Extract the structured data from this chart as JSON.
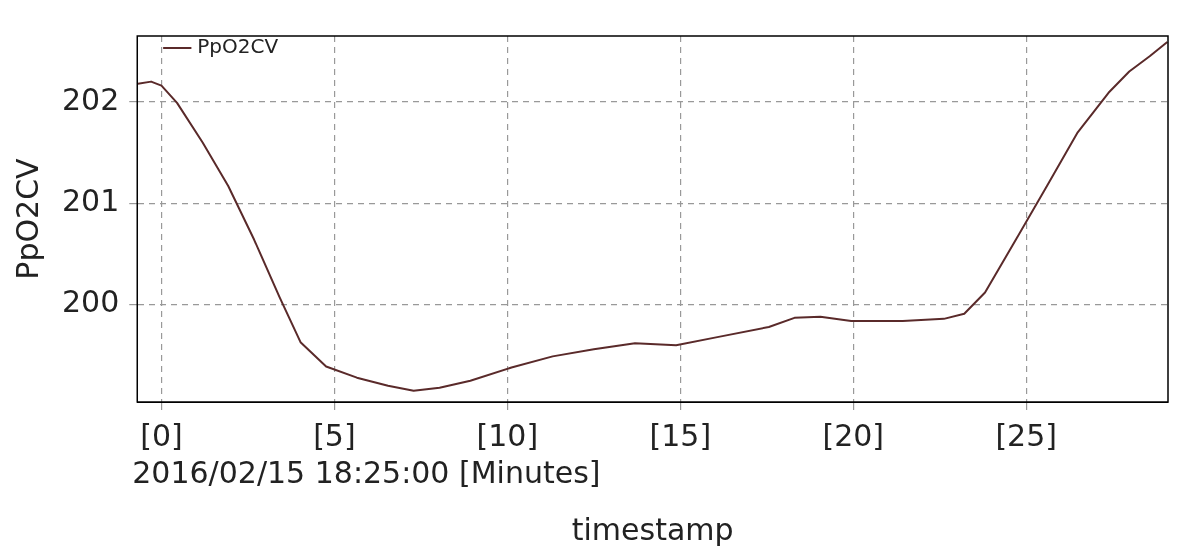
{
  "chart_data": {
    "type": "line",
    "xlabel": "timestamp",
    "ylabel": "PpO2CV",
    "annotations": [
      "2016/02/15 18:25:00 [Minutes]"
    ],
    "x": [
      -0.68,
      -0.3,
      0,
      0.45,
      1.19,
      1.93,
      2.68,
      3.42,
      4.02,
      4.76,
      5.65,
      6.55,
      7.29,
      8.04,
      8.93,
      10.12,
      11.31,
      12.5,
      13.69,
      14.88,
      16.07,
      17.56,
      18.3,
      19.05,
      19.94,
      21.43,
      22.62,
      23.21,
      23.81,
      24.7,
      25.6,
      26.49,
      27.38,
      27.98,
      28.57,
      29.08
    ],
    "series": [
      {
        "name": "PpO2CV",
        "color": "#5a2a2a",
        "values": [
          202.18,
          202.2,
          202.16,
          201.99,
          201.6,
          201.17,
          200.64,
          200.07,
          199.63,
          199.39,
          199.28,
          199.2,
          199.15,
          199.18,
          199.25,
          199.38,
          199.49,
          199.56,
          199.62,
          199.6,
          199.68,
          199.78,
          199.87,
          199.88,
          199.84,
          199.84,
          199.86,
          199.91,
          200.12,
          200.64,
          201.17,
          201.7,
          202.09,
          202.3,
          202.45,
          202.59
        ]
      }
    ],
    "xlim": [
      -0.7,
      29.1
    ],
    "xticks": [
      {
        "value": 0,
        "label": "[0]"
      },
      {
        "value": 5,
        "label": "[5]"
      },
      {
        "value": 10,
        "label": "[10]"
      },
      {
        "value": 15,
        "label": "[15]"
      },
      {
        "value": 20,
        "label": "[20]"
      },
      {
        "value": 25,
        "label": "[25]"
      }
    ],
    "ylim": [
      199.04,
      202.65
    ],
    "yticks": [
      200,
      201,
      202
    ],
    "grid": true,
    "legend": "top left",
    "marker": "none",
    "line_style": "solid"
  }
}
